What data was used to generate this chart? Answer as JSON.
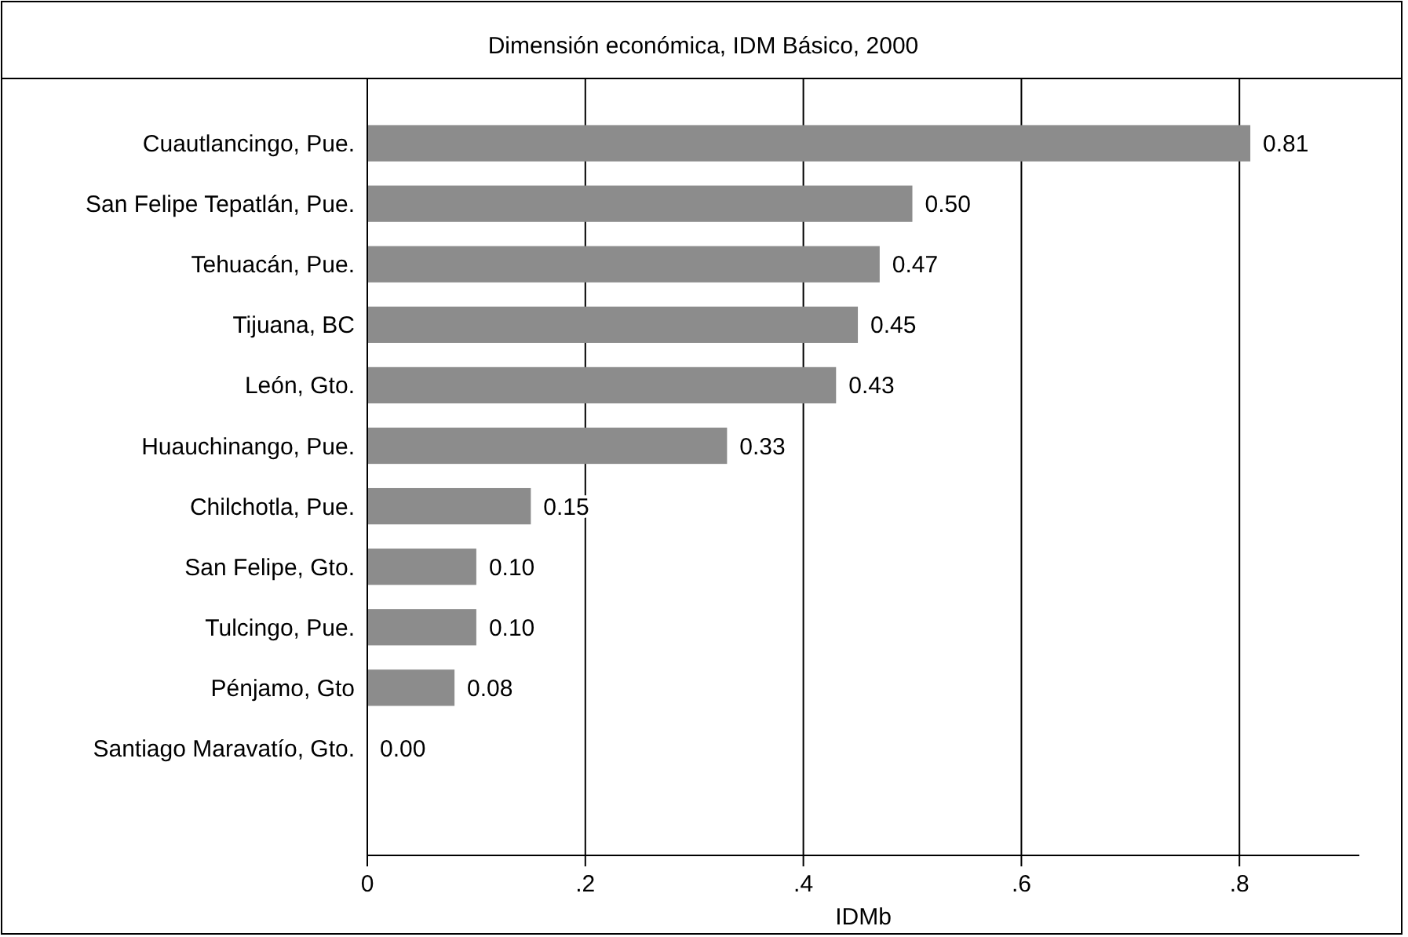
{
  "chart_data": {
    "type": "bar",
    "orientation": "horizontal",
    "title": "Dimensión económica, IDM Básico, 2000",
    "xlabel": "IDMb",
    "categories": [
      "Cuautlancingo, Pue.",
      "San Felipe Tepatlán, Pue.",
      "Tehuacán, Pue.",
      "Tijuana, BC",
      "León, Gto.",
      "Huauchinango, Pue.",
      "Chilchotla, Pue.",
      "San Felipe, Gto.",
      "Tulcingo, Pue.",
      "Pénjamo, Gto",
      "Santiago Maravatío, Gto."
    ],
    "values": [
      0.81,
      0.5,
      0.47,
      0.45,
      0.43,
      0.33,
      0.15,
      0.1,
      0.1,
      0.08,
      0.0
    ],
    "value_labels": [
      "0.81",
      "0.50",
      "0.47",
      "0.45",
      "0.43",
      "0.33",
      "0.15",
      "0.10",
      "0.10",
      "0.08",
      "0.00"
    ],
    "color": "#8c8c8c",
    "xlim": [
      0,
      0.91
    ],
    "xticks": [
      0,
      {
        "value": 0.2,
        "label": ".2"
      },
      {
        "value": 0.4,
        "label": ".4"
      },
      {
        "value": 0.6,
        "label": ".6"
      },
      {
        "value": 0.8,
        "label": ".8"
      }
    ],
    "grid": "x"
  }
}
